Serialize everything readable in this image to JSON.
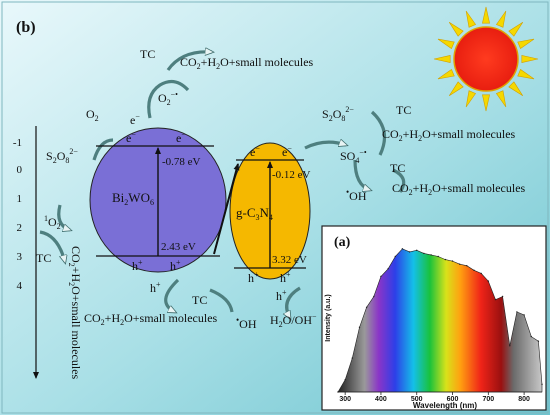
{
  "panel_b_label": "(b)",
  "panel_a_label": "(a)",
  "potential_axis": {
    "ticks": [
      "-1",
      "0",
      "1",
      "2",
      "3",
      "4"
    ]
  },
  "bi2wo6": {
    "name_main": "Bi",
    "name_sub1": "2",
    "name_mid": "WO",
    "name_sub2": "6",
    "cb_potential": "-0.78 eV",
    "vb_potential": "2.43 eV",
    "electron": "e",
    "hole": "h",
    "charge_minus": "−",
    "charge_plus": "+",
    "color": "#7a6fd6"
  },
  "gc3n4": {
    "name_pre": "g-C",
    "name_sub1": "3",
    "name_mid": "N",
    "name_sub2": "4",
    "cb_potential": "-0.12 eV",
    "vb_potential": "3.32 eV",
    "color": "#f5b800"
  },
  "species": {
    "tc": "TC",
    "o2": "O",
    "o2_sub": "2",
    "superoxide": "O",
    "superoxide_sup": "−•",
    "persulfate": "S",
    "persulfate_sub1": "2",
    "persulfate_mid": "O",
    "persulfate_sub2": "8",
    "persulfate_sup": "2−",
    "sulfate_radical": "SO",
    "sulfate_sub": "4",
    "sulfate_sup": "−•",
    "hydroxyl_dot": "•",
    "hydroxyl": "OH",
    "singlet_pre": "1",
    "singlet": "O",
    "singlet_sub": "2",
    "water": "H",
    "water_sub": "2",
    "water_mid": "O/OH",
    "water_sup": "−"
  },
  "products": {
    "co2": "CO",
    "sub2": "2",
    "plus_h": "+H",
    "o_small": "O+small molecules"
  },
  "spectrum": {
    "xlabel": "Wavelength (nm)",
    "ylabel": "Intensity (a.u.)",
    "xticks": [
      "300",
      "400",
      "500",
      "600",
      "700",
      "800"
    ]
  },
  "chart_data": {
    "type": "area",
    "xlabel": "Wavelength (nm)",
    "ylabel": "Intensity (a.u.)",
    "xlim": [
      280,
      850
    ],
    "x": [
      280,
      300,
      320,
      340,
      360,
      380,
      400,
      420,
      440,
      460,
      480,
      500,
      520,
      540,
      560,
      580,
      600,
      620,
      640,
      660,
      680,
      700,
      720,
      740,
      760,
      780,
      800,
      820,
      840,
      850
    ],
    "values": [
      0.0,
      0.08,
      0.22,
      0.42,
      0.55,
      0.62,
      0.75,
      0.8,
      0.88,
      0.93,
      0.91,
      0.92,
      0.9,
      0.89,
      0.88,
      0.86,
      0.85,
      0.83,
      0.82,
      0.79,
      0.77,
      0.72,
      0.6,
      0.62,
      0.3,
      0.52,
      0.5,
      0.36,
      0.33,
      0.05
    ]
  }
}
